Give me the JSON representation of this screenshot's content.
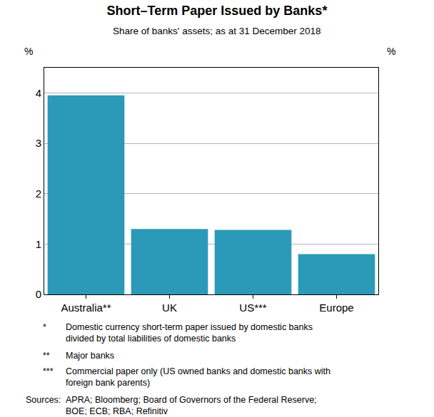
{
  "chart_data": {
    "type": "bar",
    "title": "Short–Term Paper Issued by Banks*",
    "subtitle": "Share of banks' assets; as at 31 December 2018",
    "ylabel": "%",
    "categories": [
      "Australia**",
      "UK",
      "US***",
      "Europe"
    ],
    "values": [
      3.95,
      1.3,
      1.28,
      0.8
    ],
    "color": "#2b9ab8",
    "ylim": [
      0,
      4.5
    ],
    "yticks": [
      0,
      1,
      2,
      3,
      4
    ],
    "grid": true,
    "data_labels": false,
    "notes": [
      {
        "symbol": "*",
        "text": "Domestic currency short-term paper issued by domestic banks divided by total liabilities of domestic banks"
      },
      {
        "symbol": "**",
        "text": "Major banks"
      },
      {
        "symbol": "***",
        "text": "Commercial paper only (US owned banks and domestic banks with foreign bank parents)"
      }
    ],
    "sources": {
      "label": "Sources:",
      "text": "APRA; Bloomberg; Board of Governors of the Federal Reserve; BOE; ECB; RBA; Refinitiv"
    }
  }
}
